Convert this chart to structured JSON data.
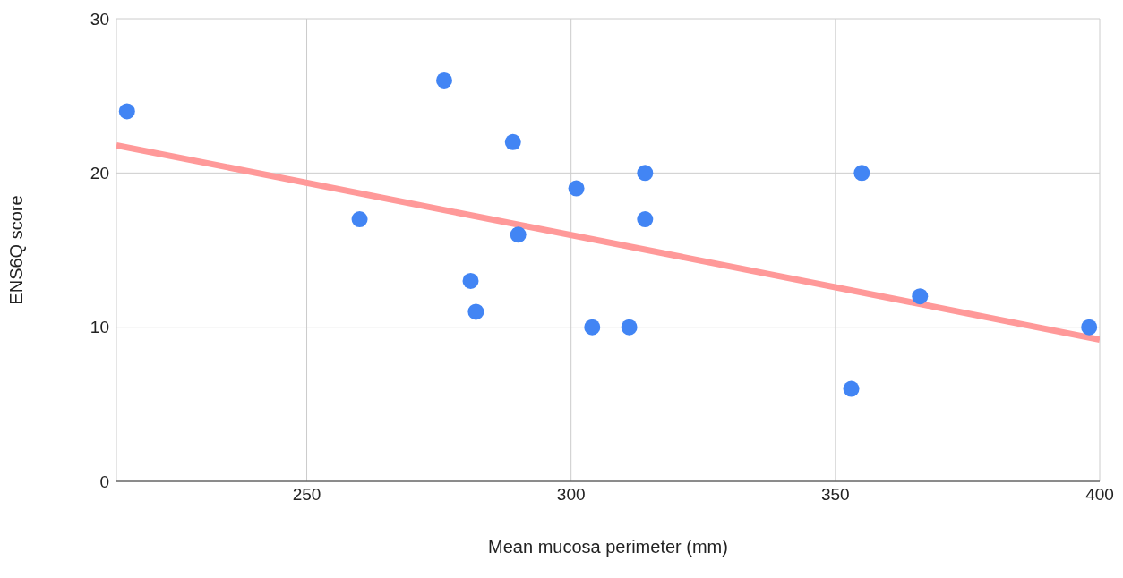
{
  "chart_data": {
    "type": "scatter",
    "xlabel": "Mean mucosa perimeter (mm)",
    "ylabel": "ENS6Q score",
    "xlim": [
      214,
      400
    ],
    "xticks": [
      250,
      300,
      350,
      400
    ],
    "ylim": [
      0,
      30
    ],
    "yticks": [
      0,
      10,
      20,
      30
    ],
    "grid": true,
    "legend": false,
    "marker": "circle",
    "series": [
      {
        "color": "#4285f4",
        "x": [
          216,
          276,
          289,
          260,
          301,
          314,
          314,
          290,
          281,
          282,
          304,
          311,
          355,
          366,
          398,
          353
        ],
        "values": [
          24,
          26,
          22,
          17,
          19,
          20,
          17,
          16,
          13,
          11,
          10,
          10,
          20,
          12,
          10,
          6
        ]
      },
      {
        "type": "line",
        "color": "#ff9999",
        "line_style": "solid",
        "marker": "none",
        "x": [
          214,
          400
        ],
        "values": [
          21.8,
          9.2
        ]
      }
    ]
  }
}
